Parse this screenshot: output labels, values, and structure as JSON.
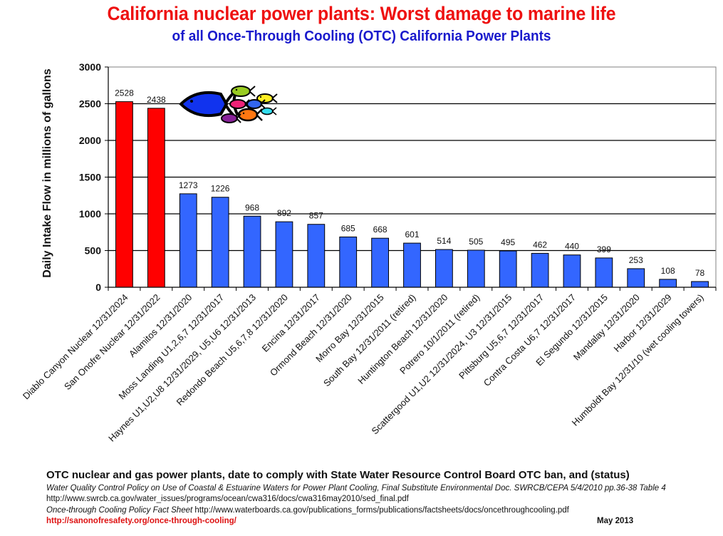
{
  "header": {
    "title": "California nuclear power plants: Worst damage to marine life",
    "subtitle": "of all Once-Through Cooling (OTC) California Power Plants"
  },
  "colors": {
    "nuclear": "#ff0000",
    "other": "#3366ff",
    "title": "#ee1111",
    "subtitle": "#1a1acc",
    "link": "#dd1111"
  },
  "chart_data": {
    "type": "bar",
    "title": "California nuclear power plants: Worst damage to marine life",
    "subtitle": "of all Once-Through Cooling (OTC) California Power Plants",
    "xlabel": "",
    "ylabel": "Daily Intake Flow in millions of gallons",
    "ylim": [
      0,
      3000
    ],
    "yticks": [
      0,
      500,
      1000,
      1500,
      2000,
      2500,
      3000
    ],
    "grid": true,
    "legend": "none",
    "categories": [
      "Diablo Canyon Nuclear 12/31/2024",
      "San Onofre Nuclear 12/31/2022",
      "Alamitos 12/31/2020",
      "Moss Landing U1,2,6,7 12/31/2017",
      "Haynes U1,U2,U8 12/31/2029, U5,U6 12/31/2013",
      "Redondo Beach U5,6,7,8 12/31/2020",
      "Encina 12/31/2017",
      "Ormond Beach 12/31/2020",
      "Morro Bay 12/31/2015",
      "South Bay 12/31/2011 (retired)",
      "Huntington Beach 12/31/2020",
      "Potrero 10/1/2011 (retired)",
      "Scattergood U1,U2 12/31/2024, U3 12/31/2015",
      "Pittsburg U5,6,7 12/31/2017",
      "Contra Costa U6,7 12/31/2017",
      "El Segundo 12/31/2015",
      "Mandalay 12/31/2020",
      "Harbor 12/31/2029",
      "Humboldt Bay 12/31/10 (wet cooling towers)"
    ],
    "values": [
      2528,
      2438,
      1273,
      1226,
      968,
      892,
      857,
      685,
      668,
      601,
      514,
      505,
      495,
      462,
      440,
      399,
      253,
      108,
      78
    ],
    "is_nuclear": [
      true,
      true,
      false,
      false,
      false,
      false,
      false,
      false,
      false,
      false,
      false,
      false,
      false,
      false,
      false,
      false,
      false,
      false,
      false
    ],
    "decoration": "fish-school-icon"
  },
  "footer": {
    "heading": "OTC nuclear and gas power plants, date to comply with State Water Resource Control Board OTC ban, and (status)",
    "line1": "Water Quality Control Policy on Use of Coastal & Estuarine Waters for Power Plant Cooling, Final Substitute Environmental Doc. SWRCB/CEPA 5/4/2010 pp.36-38 Table 4",
    "line2": "http://www.swrcb.ca.gov/water_issues/programs/ocean/cwa316/docs/cwa316may2010/sed_final.pdf",
    "line3_title": "Once-through Cooling Policy Fact Sheet",
    "line3_url": "http://www.waterboards.ca.gov/publications_forms/publications/factsheets/docs/oncethroughcooling.pdf",
    "link": "http://sanonofresafety.org/once-through-cooling/",
    "date": "May 2013"
  }
}
